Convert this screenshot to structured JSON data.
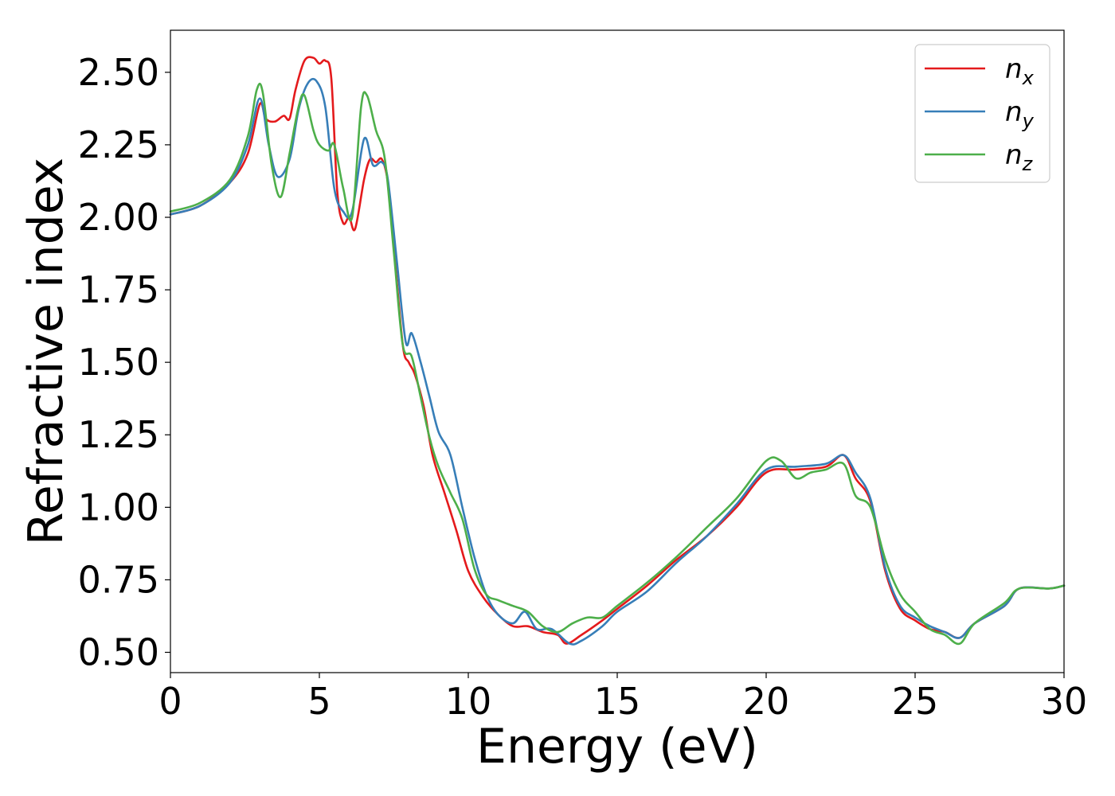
{
  "chart_data": {
    "type": "line",
    "xlabel": "Energy (eV)",
    "ylabel": "Refractive index",
    "xlim": [
      0,
      30
    ],
    "ylim": [
      0.43,
      2.645
    ],
    "xticks": [
      "0",
      "5",
      "10",
      "15",
      "20",
      "25",
      "30"
    ],
    "yticks": [
      "0.50",
      "0.75",
      "1.00",
      "1.25",
      "1.50",
      "1.75",
      "2.00",
      "2.25",
      "2.50"
    ],
    "grid": false,
    "legend_position": "top-right",
    "series": [
      {
        "name": "n",
        "subscript": "x",
        "color": "#e41a1c",
        "points": [
          [
            0,
            2.01
          ],
          [
            1,
            2.04
          ],
          [
            2,
            2.12
          ],
          [
            2.6,
            2.22
          ],
          [
            3.0,
            2.39
          ],
          [
            3.2,
            2.34
          ],
          [
            3.5,
            2.33
          ],
          [
            3.8,
            2.35
          ],
          [
            4.0,
            2.34
          ],
          [
            4.2,
            2.44
          ],
          [
            4.5,
            2.54
          ],
          [
            4.8,
            2.55
          ],
          [
            5.0,
            2.53
          ],
          [
            5.2,
            2.54
          ],
          [
            5.4,
            2.48
          ],
          [
            5.6,
            2.09
          ],
          [
            5.8,
            1.98
          ],
          [
            6.0,
            2.0
          ],
          [
            6.2,
            1.96
          ],
          [
            6.5,
            2.13
          ],
          [
            6.7,
            2.2
          ],
          [
            6.9,
            2.19
          ],
          [
            7.1,
            2.2
          ],
          [
            7.3,
            2.12
          ],
          [
            7.5,
            1.9
          ],
          [
            7.8,
            1.56
          ],
          [
            8.0,
            1.5
          ],
          [
            8.2,
            1.46
          ],
          [
            8.5,
            1.35
          ],
          [
            8.8,
            1.18
          ],
          [
            9.2,
            1.05
          ],
          [
            9.6,
            0.92
          ],
          [
            10.0,
            0.78
          ],
          [
            10.5,
            0.69
          ],
          [
            11.0,
            0.63
          ],
          [
            11.5,
            0.59
          ],
          [
            12.0,
            0.59
          ],
          [
            12.5,
            0.57
          ],
          [
            13.0,
            0.56
          ],
          [
            13.3,
            0.53
          ],
          [
            13.8,
            0.56
          ],
          [
            14.5,
            0.61
          ],
          [
            15.0,
            0.65
          ],
          [
            16.0,
            0.73
          ],
          [
            17.0,
            0.82
          ],
          [
            18.0,
            0.9
          ],
          [
            19.0,
            1.0
          ],
          [
            20.0,
            1.12
          ],
          [
            21.0,
            1.13
          ],
          [
            22.0,
            1.14
          ],
          [
            22.6,
            1.18
          ],
          [
            23.0,
            1.1
          ],
          [
            23.5,
            1.02
          ],
          [
            24.0,
            0.78
          ],
          [
            24.5,
            0.65
          ],
          [
            25.0,
            0.61
          ],
          [
            25.5,
            0.58
          ],
          [
            26.0,
            0.57
          ],
          [
            26.5,
            0.55
          ],
          [
            27.0,
            0.6
          ],
          [
            28.0,
            0.66
          ],
          [
            28.5,
            0.72
          ],
          [
            29.5,
            0.72
          ],
          [
            30.0,
            0.73
          ]
        ]
      },
      {
        "name": "n",
        "subscript": "y",
        "color": "#377eb8",
        "points": [
          [
            0,
            2.01
          ],
          [
            1,
            2.04
          ],
          [
            2,
            2.12
          ],
          [
            2.6,
            2.25
          ],
          [
            3.0,
            2.41
          ],
          [
            3.3,
            2.25
          ],
          [
            3.6,
            2.14
          ],
          [
            4.0,
            2.2
          ],
          [
            4.3,
            2.37
          ],
          [
            4.6,
            2.46
          ],
          [
            4.9,
            2.47
          ],
          [
            5.2,
            2.38
          ],
          [
            5.5,
            2.1
          ],
          [
            5.8,
            2.02
          ],
          [
            6.1,
            2.02
          ],
          [
            6.5,
            2.27
          ],
          [
            6.8,
            2.18
          ],
          [
            7.1,
            2.19
          ],
          [
            7.3,
            2.13
          ],
          [
            7.6,
            1.85
          ],
          [
            7.9,
            1.57
          ],
          [
            8.1,
            1.6
          ],
          [
            8.4,
            1.5
          ],
          [
            8.7,
            1.38
          ],
          [
            9.0,
            1.26
          ],
          [
            9.4,
            1.18
          ],
          [
            9.8,
            1.0
          ],
          [
            10.2,
            0.83
          ],
          [
            10.6,
            0.7
          ],
          [
            11.0,
            0.63
          ],
          [
            11.5,
            0.6
          ],
          [
            11.9,
            0.64
          ],
          [
            12.3,
            0.58
          ],
          [
            12.8,
            0.58
          ],
          [
            13.4,
            0.53
          ],
          [
            13.8,
            0.54
          ],
          [
            14.5,
            0.59
          ],
          [
            15.0,
            0.64
          ],
          [
            16.0,
            0.71
          ],
          [
            17.0,
            0.81
          ],
          [
            18.0,
            0.9
          ],
          [
            19.0,
            1.01
          ],
          [
            20.0,
            1.13
          ],
          [
            21.0,
            1.14
          ],
          [
            22.0,
            1.15
          ],
          [
            22.6,
            1.18
          ],
          [
            23.0,
            1.12
          ],
          [
            23.5,
            1.03
          ],
          [
            24.0,
            0.79
          ],
          [
            24.5,
            0.66
          ],
          [
            25.0,
            0.62
          ],
          [
            25.5,
            0.59
          ],
          [
            26.0,
            0.57
          ],
          [
            26.5,
            0.55
          ],
          [
            27.0,
            0.6
          ],
          [
            28.0,
            0.66
          ],
          [
            28.5,
            0.72
          ],
          [
            29.5,
            0.72
          ],
          [
            30.0,
            0.73
          ]
        ]
      },
      {
        "name": "n",
        "subscript": "z",
        "color": "#4daf4a",
        "points": [
          [
            0,
            2.02
          ],
          [
            1,
            2.05
          ],
          [
            2,
            2.13
          ],
          [
            2.6,
            2.28
          ],
          [
            2.9,
            2.44
          ],
          [
            3.1,
            2.43
          ],
          [
            3.4,
            2.18
          ],
          [
            3.7,
            2.07
          ],
          [
            4.0,
            2.22
          ],
          [
            4.3,
            2.38
          ],
          [
            4.5,
            2.42
          ],
          [
            4.8,
            2.3
          ],
          [
            5.0,
            2.25
          ],
          [
            5.3,
            2.23
          ],
          [
            5.5,
            2.25
          ],
          [
            5.8,
            2.1
          ],
          [
            6.1,
            2.0
          ],
          [
            6.4,
            2.38
          ],
          [
            6.6,
            2.42
          ],
          [
            6.9,
            2.3
          ],
          [
            7.2,
            2.2
          ],
          [
            7.5,
            1.88
          ],
          [
            7.8,
            1.56
          ],
          [
            8.1,
            1.52
          ],
          [
            8.4,
            1.38
          ],
          [
            8.7,
            1.24
          ],
          [
            9.0,
            1.14
          ],
          [
            9.4,
            1.05
          ],
          [
            9.8,
            0.96
          ],
          [
            10.2,
            0.79
          ],
          [
            10.6,
            0.7
          ],
          [
            11.0,
            0.68
          ],
          [
            11.5,
            0.66
          ],
          [
            12.0,
            0.64
          ],
          [
            12.5,
            0.59
          ],
          [
            13.0,
            0.57
          ],
          [
            13.5,
            0.6
          ],
          [
            14.0,
            0.62
          ],
          [
            14.5,
            0.62
          ],
          [
            15.0,
            0.66
          ],
          [
            16.0,
            0.74
          ],
          [
            17.0,
            0.83
          ],
          [
            18.0,
            0.93
          ],
          [
            19.0,
            1.03
          ],
          [
            20.0,
            1.16
          ],
          [
            20.5,
            1.16
          ],
          [
            21.0,
            1.1
          ],
          [
            21.5,
            1.12
          ],
          [
            22.0,
            1.13
          ],
          [
            22.6,
            1.15
          ],
          [
            23.0,
            1.04
          ],
          [
            23.5,
            1.0
          ],
          [
            24.0,
            0.82
          ],
          [
            24.5,
            0.7
          ],
          [
            25.0,
            0.64
          ],
          [
            25.5,
            0.58
          ],
          [
            26.0,
            0.56
          ],
          [
            26.5,
            0.53
          ],
          [
            27.0,
            0.6
          ],
          [
            28.0,
            0.67
          ],
          [
            28.5,
            0.72
          ],
          [
            29.5,
            0.72
          ],
          [
            30.0,
            0.73
          ]
        ]
      }
    ]
  }
}
